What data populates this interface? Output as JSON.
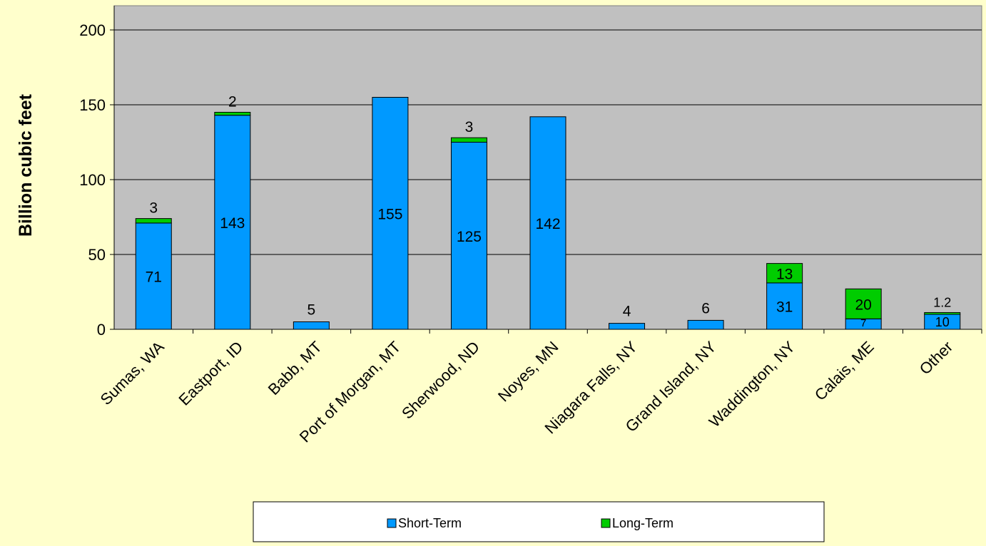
{
  "chart_data": {
    "type": "bar",
    "stacked": true,
    "ylabel": "Billion cubic feet",
    "ylim": [
      0,
      200
    ],
    "yticks": [
      0,
      50,
      100,
      150,
      200
    ],
    "grid": true,
    "legend_position": "bottom",
    "plot_background": "#C0C0C0",
    "page_background": "#FFFFCC",
    "categories": [
      "Sumas, WA",
      "Eastport, ID",
      "Babb, MT",
      "Port of Morgan, MT",
      "Sherwood, ND",
      "Noyes, MN",
      "Niagara Falls, NY",
      "Grand Island, NY",
      "Waddington, NY",
      "Calais, ME",
      "Other"
    ],
    "series": [
      {
        "name": "Short-Term",
        "color": "#0099FF",
        "values": [
          71,
          143,
          5,
          155,
          125,
          142,
          4,
          6,
          31,
          7,
          10
        ],
        "labels": [
          "71",
          "143",
          "5",
          "155",
          "125",
          "142",
          "4",
          "6",
          "31",
          "7",
          "10"
        ]
      },
      {
        "name": "Long-Term",
        "color": "#00CC00",
        "values": [
          3,
          2,
          0,
          0,
          3,
          0,
          0,
          0,
          13,
          20,
          1.2
        ],
        "labels": [
          "3",
          "2",
          "",
          "",
          "3",
          "",
          "",
          "",
          "13",
          "20",
          "1.2"
        ]
      }
    ]
  }
}
